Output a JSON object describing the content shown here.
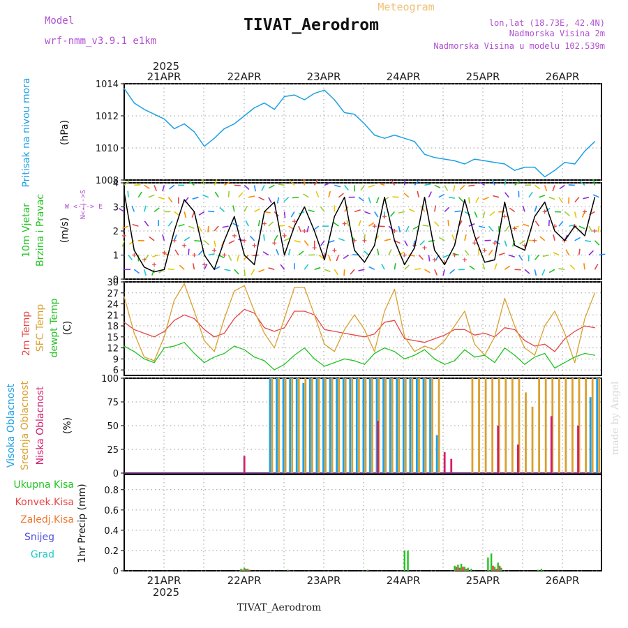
{
  "header": {
    "meteogram_label": "Meteogram",
    "model_label": "Model",
    "model_name": "wrf-nmm_v3.9.1 e1km",
    "station_title": "TIVAT_Aerodrom",
    "lonlat": "lon,lat (18.73E, 42.4N)",
    "elevation": "Nadmorska Visina 2m",
    "model_elevation": "Nadmorska Visina u modelu 102.539m",
    "footer_station": "TIVAT_Aerodrom",
    "credit": "made by Angel"
  },
  "colors": {
    "pressure": "#1ea0e6",
    "temp2m": "#e64646",
    "sfc_temp": "#d9a030",
    "dewpt": "#22c322",
    "wind_speed": "#000000",
    "gust": "#e64646",
    "high_cloud": "#1ea0e6",
    "mid_cloud": "#d9a030",
    "low_cloud": "#d0206e",
    "precip_total": "#22c322",
    "precip_conv": "#e64646",
    "precip_grid": "#f07830",
    "snow": "#5050e0",
    "graupel": "#20c8c8",
    "model_purple": "#b050d0",
    "header_orange": "#f0c078"
  },
  "chart_data": [
    {
      "type": "line",
      "panel": "pressure",
      "ylabel_1": "Pritisak na nivou mora",
      "ylabel_unit": "(hPa)",
      "yticks": [
        "1008",
        "1010",
        "1012",
        "1014"
      ],
      "ylim": [
        1008,
        1014
      ],
      "grid": true,
      "top_axis": {
        "year": "2025",
        "ticks": [
          "21APR",
          "22APR",
          "23APR",
          "24APR",
          "25APR",
          "26APR"
        ]
      },
      "x_hours": [
        0,
        3,
        6,
        9,
        12,
        15,
        18,
        21,
        24,
        27,
        30,
        33,
        36,
        39,
        42,
        45,
        48,
        51,
        54,
        57,
        60,
        63,
        66,
        69,
        72,
        75,
        78,
        81,
        84,
        87,
        90,
        93,
        96,
        99,
        102,
        105,
        108,
        111,
        114,
        117,
        120,
        123,
        126,
        129,
        132,
        135,
        138,
        141
      ],
      "series": [
        {
          "values": [
            1013.7,
            1012.8,
            1012.4,
            1012.1,
            1011.8,
            1011.2,
            1011.5,
            1011.0,
            1010.1,
            1010.6,
            1011.2,
            1011.5,
            1012.0,
            1012.5,
            1012.8,
            1012.4,
            1013.2,
            1013.3,
            1013.0,
            1013.4,
            1013.6,
            1013.0,
            1012.2,
            1012.1,
            1011.5,
            1010.8,
            1010.6,
            1010.8,
            1010.6,
            1010.4,
            1009.6,
            1009.4,
            1009.3,
            1009.2,
            1009.0,
            1009.3,
            1009.2,
            1009.1,
            1009.0,
            1008.6,
            1008.8,
            1008.8,
            1008.2,
            1008.6,
            1009.1,
            1009.0,
            1009.8,
            1010.4
          ]
        }
      ]
    },
    {
      "type": "line",
      "panel": "wind",
      "ylabel_1": "10m Vjetar",
      "ylabel_2": "Brzina i Pravac",
      "ylabel_unit": "(m/s)",
      "compass_ns": "N<-|->S",
      "compass_ew": "W <-|-> E",
      "yticks": [
        "0",
        "1",
        "2",
        "3",
        "4"
      ],
      "ylim": [
        0,
        4
      ],
      "grid": true,
      "x_hours": [
        0,
        3,
        6,
        9,
        12,
        15,
        18,
        21,
        24,
        27,
        30,
        33,
        36,
        39,
        42,
        45,
        48,
        51,
        54,
        57,
        60,
        63,
        66,
        69,
        72,
        75,
        78,
        81,
        84,
        87,
        90,
        93,
        96,
        99,
        102,
        105,
        108,
        111,
        114,
        117,
        120,
        123,
        126,
        129,
        132,
        135,
        138,
        141
      ],
      "series": [
        {
          "name": "speed",
          "values": [
            3.6,
            1.2,
            0.5,
            0.3,
            0.4,
            2.0,
            3.3,
            2.8,
            1.0,
            0.4,
            1.6,
            2.6,
            1.0,
            0.6,
            2.8,
            3.2,
            1.0,
            2.2,
            3.0,
            2.0,
            0.8,
            2.6,
            3.4,
            1.2,
            0.7,
            1.4,
            3.4,
            1.6,
            0.6,
            1.3,
            3.4,
            1.2,
            0.6,
            1.4,
            3.3,
            1.8,
            0.7,
            0.8,
            3.2,
            1.4,
            1.2,
            2.6,
            3.2,
            2.0,
            1.6,
            2.2,
            1.8,
            3.4
          ]
        },
        {
          "name": "gust",
          "values": [
            1.8,
            1.0,
            0.8,
            0.6,
            1.1,
            1.6,
            1.4,
            1.0,
            0.6,
            1.2,
            1.0,
            1.8,
            1.6,
            1.4,
            2.3,
            1.5,
            1.8,
            2.4,
            2.0,
            1.3,
            1.0,
            1.2,
            2.3,
            1.6,
            1.6,
            2.2,
            2.6,
            2.0,
            1.0,
            1.4,
            1.3,
            0.8,
            0.7,
            1.0,
            0.8,
            1.5,
            1.2,
            1.5,
            2.6,
            2.1,
            1.4,
            1.6,
            2.8,
            2.2,
            1.6,
            2.2,
            2.8,
            2.0
          ]
        }
      ]
    },
    {
      "type": "line",
      "panel": "temperature",
      "ylabel_1": "2m Temp",
      "ylabel_2": "SFC Temp",
      "ylabel_3": "dewpt Temp",
      "ylabel_unit": "(C)",
      "yticks": [
        "6",
        "9",
        "12",
        "15",
        "18",
        "21",
        "24",
        "27",
        "30"
      ],
      "ylim": [
        4.5,
        30
      ],
      "grid": true,
      "x_hours": [
        0,
        3,
        6,
        9,
        12,
        15,
        18,
        21,
        24,
        27,
        30,
        33,
        36,
        39,
        42,
        45,
        48,
        51,
        54,
        57,
        60,
        63,
        66,
        69,
        72,
        75,
        78,
        81,
        84,
        87,
        90,
        93,
        96,
        99,
        102,
        105,
        108,
        111,
        114,
        117,
        120,
        123,
        126,
        129,
        132,
        135,
        138,
        141
      ],
      "series": [
        {
          "name": "2m Temp",
          "values": [
            19.0,
            17.0,
            16.0,
            15.0,
            16.5,
            19.5,
            21.0,
            20.0,
            17.0,
            15.0,
            16.0,
            20.0,
            22.5,
            21.5,
            17.5,
            16.5,
            17.5,
            22.0,
            22.0,
            21.0,
            17.0,
            16.5,
            16.0,
            15.5,
            15.0,
            15.8,
            19.0,
            19.5,
            14.5,
            14.0,
            13.5,
            14.5,
            15.5,
            17.0,
            17.0,
            15.5,
            16.0,
            15.0,
            17.5,
            17.0,
            14.0,
            12.5,
            13.0,
            11.0,
            14.5,
            16.5,
            18.0,
            17.5
          ]
        },
        {
          "name": "SFC Temp",
          "values": [
            26.0,
            16.0,
            9.5,
            8.5,
            15.0,
            25.0,
            29.5,
            22.0,
            14.0,
            11.0,
            20.0,
            27.5,
            29.0,
            22.0,
            16.0,
            12.0,
            20.0,
            28.5,
            28.5,
            21.0,
            13.0,
            11.0,
            17.0,
            21.0,
            17.0,
            11.0,
            22.0,
            28.0,
            15.0,
            11.0,
            12.5,
            11.5,
            14.0,
            18.0,
            22.0,
            13.0,
            10.0,
            15.0,
            25.5,
            18.0,
            12.0,
            10.0,
            18.0,
            22.0,
            16.0,
            8.0,
            20.0,
            27.0
          ]
        },
        {
          "name": "dewpt Temp",
          "values": [
            12.5,
            11.0,
            9.0,
            8.0,
            12.0,
            12.5,
            13.5,
            10.5,
            8.0,
            9.5,
            10.5,
            12.5,
            11.5,
            9.5,
            8.5,
            6.0,
            7.5,
            10.0,
            12.0,
            9.0,
            7.0,
            8.0,
            9.0,
            8.5,
            7.5,
            10.5,
            12.0,
            11.0,
            9.0,
            10.0,
            11.5,
            9.0,
            7.5,
            8.5,
            11.5,
            9.5,
            10.0,
            8.0,
            12.0,
            10.0,
            7.5,
            9.5,
            10.5,
            6.5,
            8.0,
            9.5,
            10.5,
            10.0
          ]
        }
      ]
    },
    {
      "type": "bar",
      "panel": "cloud",
      "ylabel_1": "Visoka Oblacnost",
      "ylabel_2": "Srednja Oblacnost",
      "ylabel_3": "Niska Oblacnost",
      "ylabel_unit": "(%)",
      "yticks": [
        "0",
        "25",
        "50",
        "75",
        "100"
      ],
      "ylim": [
        0,
        100
      ],
      "grid": true,
      "x_hours": [
        36,
        38,
        40,
        42,
        44,
        46,
        48,
        50,
        52,
        54,
        56,
        58,
        60,
        62,
        64,
        66,
        68,
        70,
        72,
        74,
        76,
        78,
        80,
        82,
        84,
        86,
        88,
        90,
        92,
        94,
        96,
        98,
        100,
        102,
        104,
        106,
        108,
        110,
        112,
        114,
        116,
        118,
        120,
        122,
        124,
        126,
        128,
        130,
        132,
        134,
        136,
        138,
        140,
        142
      ],
      "series": [
        {
          "name": "Visoka Oblacnost",
          "values": [
            0,
            0,
            0,
            0,
            100,
            100,
            100,
            100,
            100,
            95,
            100,
            100,
            100,
            100,
            100,
            100,
            100,
            100,
            100,
            100,
            100,
            100,
            100,
            100,
            100,
            100,
            100,
            100,
            100,
            40,
            0,
            0,
            0,
            0,
            0,
            0,
            0,
            0,
            0,
            0,
            0,
            0,
            0,
            0,
            0,
            0,
            0,
            0,
            0,
            0,
            0,
            0,
            80,
            100
          ]
        },
        {
          "name": "Srednja Oblacnost",
          "values": [
            0,
            0,
            0,
            0,
            100,
            100,
            100,
            100,
            100,
            100,
            100,
            100,
            100,
            100,
            100,
            100,
            100,
            100,
            100,
            100,
            100,
            100,
            100,
            100,
            100,
            100,
            100,
            100,
            100,
            100,
            0,
            0,
            0,
            0,
            100,
            100,
            100,
            100,
            100,
            100,
            100,
            100,
            85,
            70,
            100,
            100,
            100,
            100,
            100,
            100,
            100,
            100,
            100,
            100
          ]
        },
        {
          "name": "Niska Oblacnost",
          "values": [
            18,
            0,
            0,
            0,
            0,
            0,
            0,
            0,
            0,
            0,
            0,
            0,
            0,
            0,
            0,
            0,
            0,
            0,
            0,
            0,
            55,
            0,
            0,
            0,
            0,
            0,
            0,
            0,
            0,
            0,
            22,
            15,
            0,
            0,
            0,
            0,
            0,
            0,
            50,
            0,
            0,
            30,
            0,
            0,
            0,
            0,
            60,
            0,
            0,
            0,
            50,
            0,
            0,
            0
          ]
        }
      ]
    },
    {
      "type": "bar",
      "panel": "precip",
      "ylabel_1": "1hr Precip (mm)",
      "legend": [
        "Ukupna Kisa",
        "Konvek.Kisa",
        "Zaledj.Kisa",
        "Snijeg",
        "Grad"
      ],
      "yticks": [
        "0",
        "0.2",
        "0.4",
        "0.6",
        "0.8"
      ],
      "ylim": [
        0,
        0.95
      ],
      "grid": true,
      "bottom_axis": {
        "year": "2025",
        "ticks": [
          "21APR",
          "22APR",
          "23APR",
          "24APR",
          "25APR",
          "26APR"
        ]
      },
      "x_hours": [
        35,
        36,
        37,
        49,
        73,
        84,
        85,
        99,
        100,
        101,
        102,
        103,
        104,
        109,
        110,
        111,
        112,
        113,
        124,
        125
      ],
      "series": [
        {
          "name": "Ukupna Kisa",
          "values": [
            0.02,
            0.03,
            0.02,
            0.01,
            0.01,
            0.2,
            0.2,
            0.05,
            0.06,
            0.07,
            0.04,
            0.03,
            0.02,
            0.13,
            0.17,
            0.04,
            0.08,
            0.03,
            0.01,
            0.02
          ]
        },
        {
          "name": "Konvek.Kisa",
          "values": [
            0.01,
            0.02,
            0.01,
            0.0,
            0.0,
            0.0,
            0.0,
            0.04,
            0.03,
            0.04,
            0.02,
            0.0,
            0.0,
            0.0,
            0.05,
            0.02,
            0.05,
            0.0,
            0.0,
            0.0
          ]
        }
      ]
    }
  ]
}
